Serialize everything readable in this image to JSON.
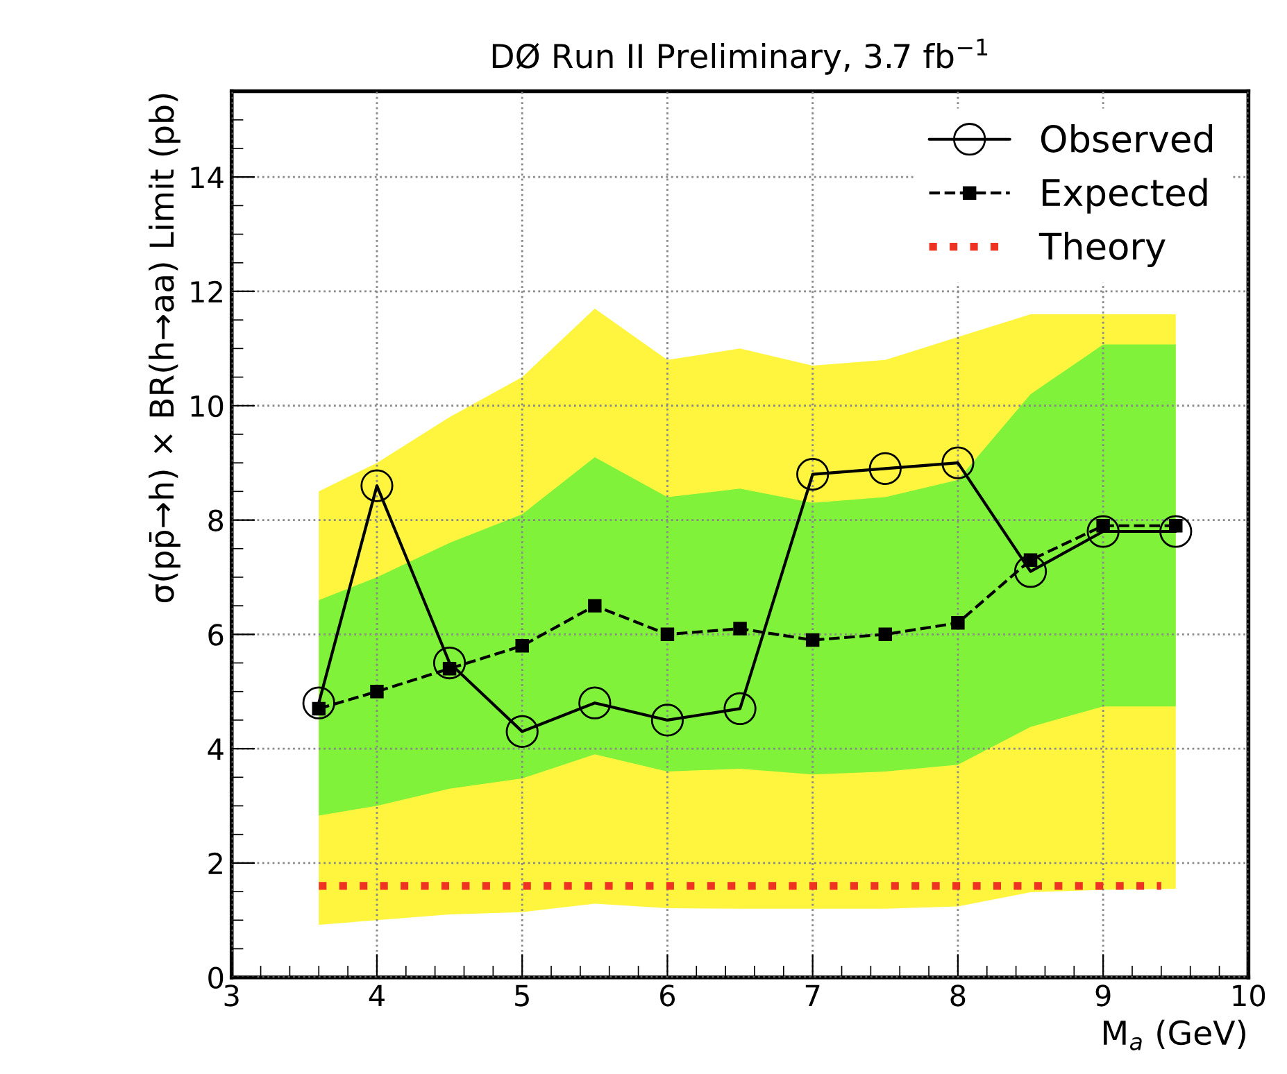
{
  "chart_data": {
    "type": "line",
    "title": "DØ Run II Preliminary, 3.7 fb$^{−1}$",
    "xlabel": "M$_{a}$ (GeV)",
    "ylabel": "σ(pp̄→h) × BR(h→aa) Limit (pb)",
    "x": [
      3.6,
      4,
      4.5,
      5,
      5.5,
      6,
      6.5,
      7,
      7.5,
      8,
      8.5,
      9,
      9.5
    ],
    "series": [
      {
        "color": "#fff53f",
        "values": [
          null,
          null,
          null,
          null,
          null,
          null,
          null,
          null,
          null,
          null,
          null,
          null,
          null
        ],
        "lower": [
          0.92,
          1.0,
          1.1,
          1.14,
          1.29,
          1.21,
          1.2,
          1.2,
          1.2,
          1.24,
          1.49,
          1.53,
          1.55
        ],
        "upper": [
          8.5,
          9.0,
          9.8,
          10.5,
          11.7,
          10.8,
          11.0,
          10.7,
          10.8,
          11.2,
          11.6,
          11.6,
          11.6
        ]
      },
      {
        "color": "#80f23a",
        "values": [
          null,
          null,
          null,
          null,
          null,
          null,
          null,
          null,
          null,
          null,
          null,
          null,
          null
        ],
        "lower": [
          2.83,
          3.0,
          3.3,
          3.48,
          3.9,
          3.6,
          3.65,
          3.55,
          3.6,
          3.72,
          4.38,
          4.74,
          4.74
        ],
        "upper": [
          6.6,
          7.0,
          7.6,
          8.1,
          9.1,
          8.4,
          8.55,
          8.3,
          8.4,
          8.7,
          10.2,
          11.07,
          11.07
        ]
      },
      {
        "name": "Theory",
        "color": "#ee3322",
        "line_style": "dotted",
        "marker": "none",
        "x": [
          3.6,
          9.4
        ],
        "values": [
          1.6,
          1.6
        ]
      },
      {
        "name": "Expected",
        "color": "#000000",
        "line_style": "dashed",
        "marker": "square",
        "values": [
          4.7,
          5.0,
          5.4,
          5.8,
          6.5,
          6.0,
          6.1,
          5.9,
          6.0,
          6.2,
          7.3,
          7.9,
          7.9
        ]
      },
      {
        "name": "Observed",
        "color": "#000000",
        "line_style": "solid",
        "marker": "circle",
        "values": [
          4.8,
          8.6,
          5.5,
          4.3,
          4.8,
          4.5,
          4.7,
          8.8,
          8.9,
          9.0,
          7.1,
          7.8,
          7.8
        ]
      }
    ],
    "xlim": [
      3,
      10
    ],
    "xticks": [
      3,
      4,
      5,
      6,
      7,
      8,
      9,
      10
    ],
    "ylim": [
      0,
      15.5
    ],
    "yticks": [
      0,
      2,
      4,
      6,
      8,
      10,
      12,
      14
    ],
    "grid": true,
    "legend": "top right"
  }
}
